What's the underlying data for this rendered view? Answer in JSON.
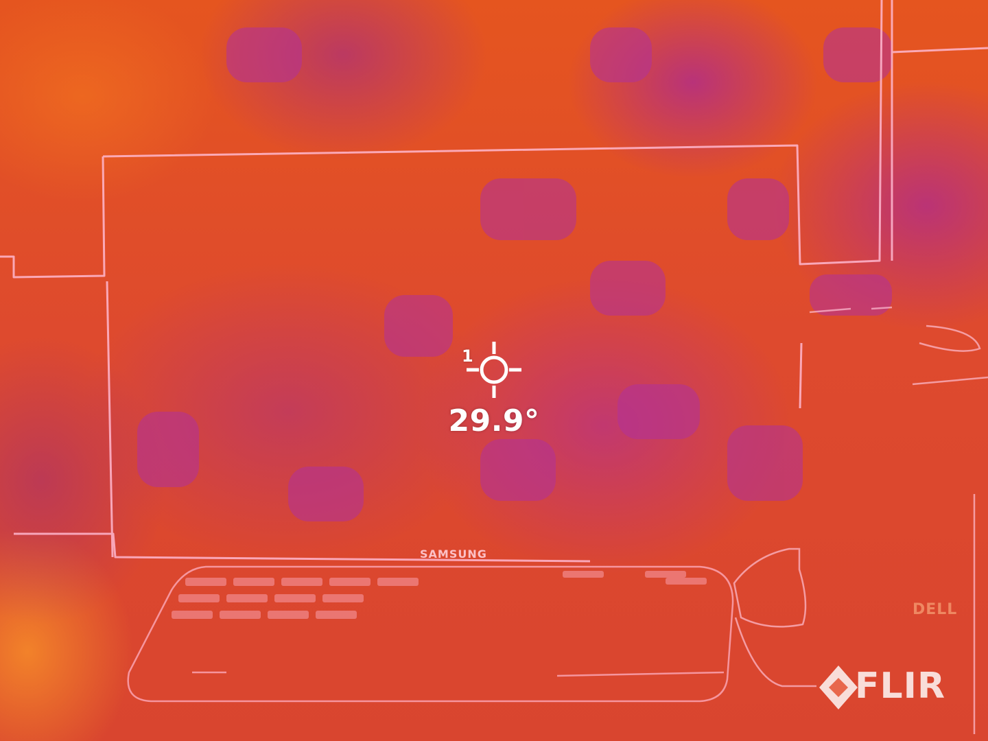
{
  "measurement": {
    "spot_index": "1",
    "temperature": "29.9°"
  },
  "overlay": {
    "brand": "FLIR"
  },
  "scene_labels": {
    "laptop_brand": "SAMSUNG",
    "tower_brand": "DELL"
  },
  "palette": {
    "hot": "#f5822a",
    "mid": "#e0503a",
    "cool": "#b0329a",
    "edge": "#ffb8d0",
    "overlay": "#ffffff"
  }
}
